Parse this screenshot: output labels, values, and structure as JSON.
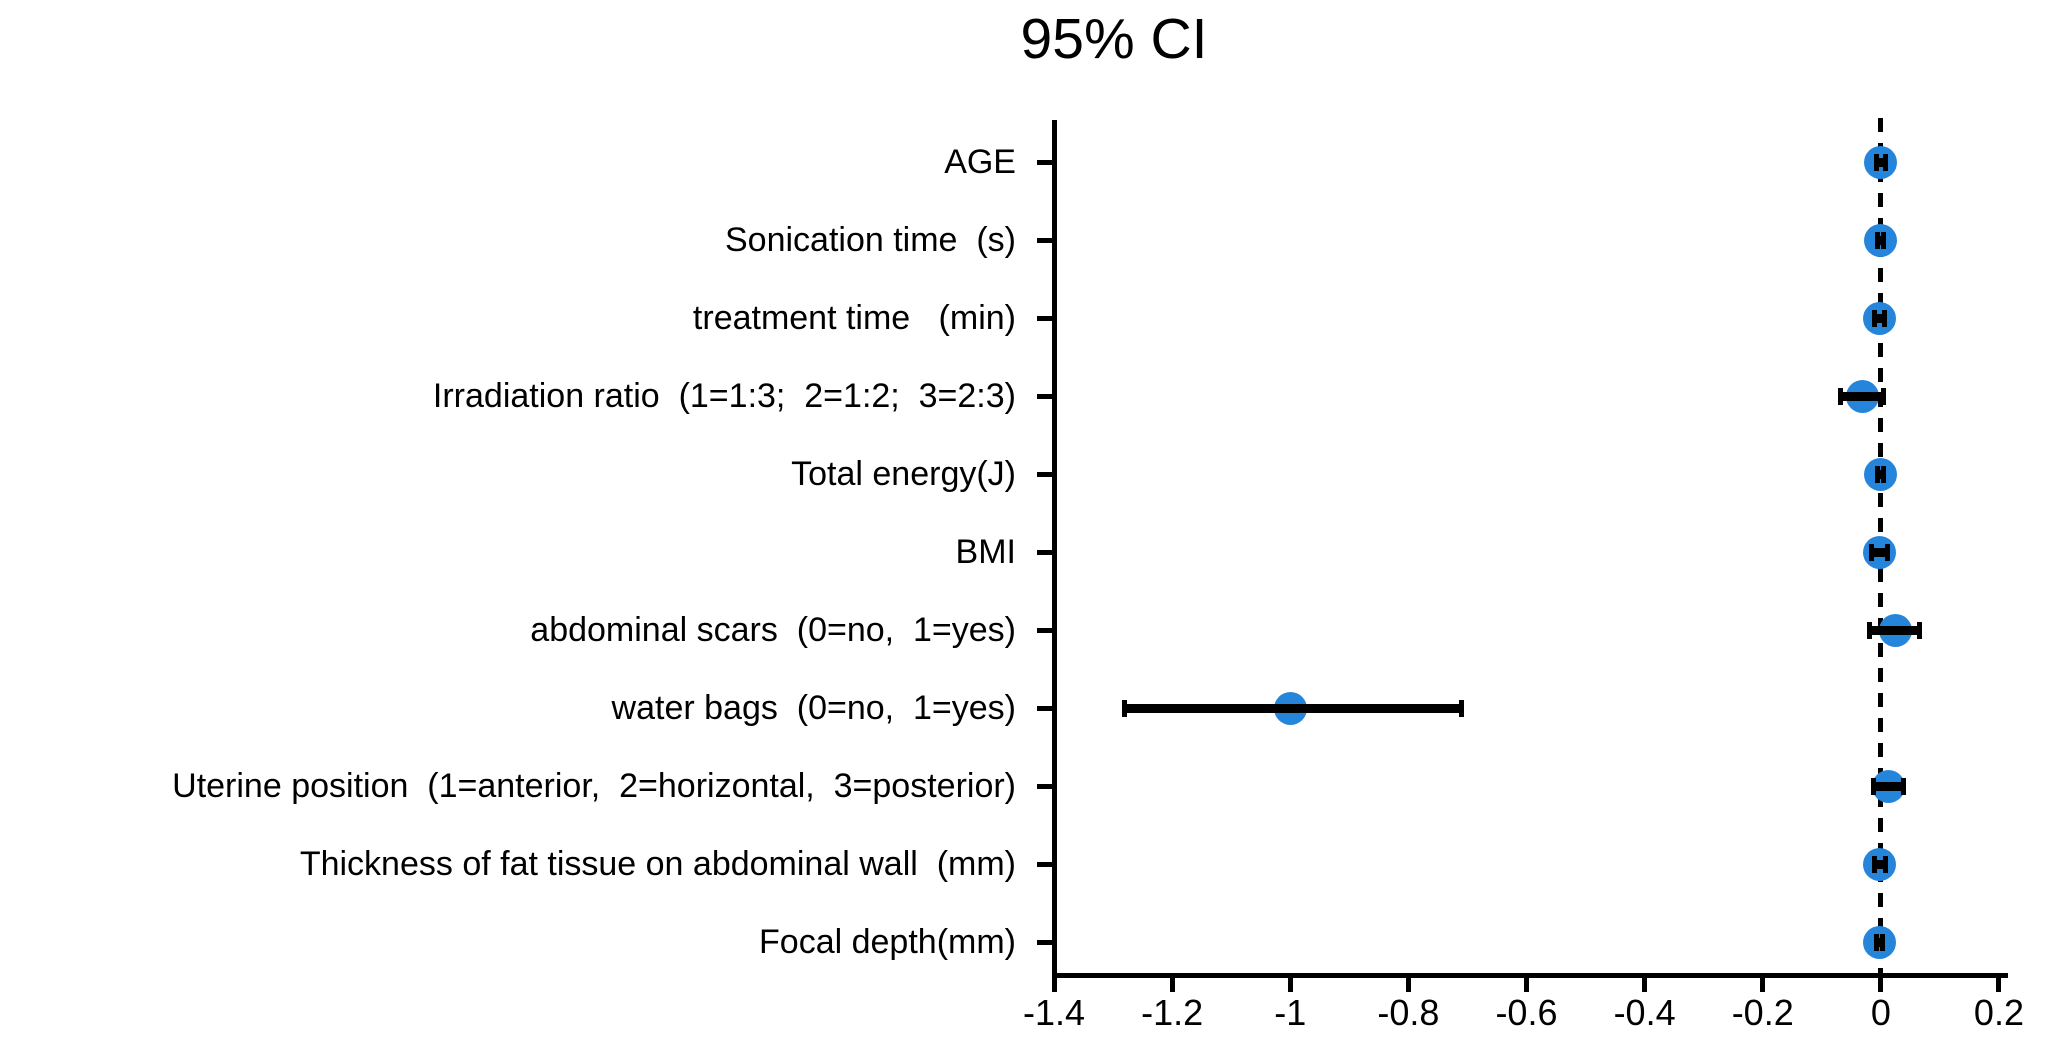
{
  "chart_data": {
    "type": "scatter",
    "subtype": "forest-plot-horizontal-ci",
    "title": "95% CI",
    "xlabel": "",
    "ylabel": "",
    "xlim": [
      -1.4,
      0.215
    ],
    "grid": false,
    "legend": null,
    "zero_reference_line": 0,
    "x_ticks": {
      "values": [
        -1.4,
        -1.2,
        -1.0,
        -0.8,
        -0.6,
        -0.4,
        -0.2,
        0,
        0.2
      ],
      "labels": [
        "-1.4",
        "-1.2",
        "-1",
        "-0.8",
        "-0.6",
        "-0.4",
        "-0.2",
        "0",
        "0.2"
      ]
    },
    "rows": [
      {
        "label": "AGE",
        "value": 0.0,
        "lo": -0.008,
        "hi": 0.008
      },
      {
        "label": "Sonication time  (s)",
        "value": 0.0,
        "lo": -0.005,
        "hi": 0.005
      },
      {
        "label": "treatment time   (min)",
        "value": -0.002,
        "lo": -0.01,
        "hi": 0.006
      },
      {
        "label": "Irradiation ratio  (1=1:3;  2=1:2;  3=2:3)",
        "value": -0.031,
        "lo": -0.069,
        "hi": 0.005
      },
      {
        "label": "Total energy(J)",
        "value": 0.0,
        "lo": -0.005,
        "hi": 0.005
      },
      {
        "label": "BMI",
        "value": -0.002,
        "lo": -0.015,
        "hi": 0.012
      },
      {
        "label": "abdominal scars  (0=no,  1=yes)",
        "value": 0.025,
        "lo": -0.02,
        "hi": 0.065
      },
      {
        "label": "water bags  (0=no,  1=yes)",
        "value": -1.0,
        "lo": -1.28,
        "hi": -0.71
      },
      {
        "label": "Uterine position  (1=anterior,  2=horizontal,  3=posterior)",
        "value": 0.013,
        "lo": -0.013,
        "hi": 0.038
      },
      {
        "label": "Thickness of fat tissue on abdominal wall  (mm)",
        "value": -0.002,
        "lo": -0.01,
        "hi": 0.008
      },
      {
        "label": "Focal depth(mm)",
        "value": -0.003,
        "lo": -0.008,
        "hi": 0.003
      }
    ],
    "colors": {
      "point": "#2585DB",
      "ci_line": "#000000",
      "axis": "#000000",
      "text": "#000000",
      "background": "#ffffff"
    }
  }
}
